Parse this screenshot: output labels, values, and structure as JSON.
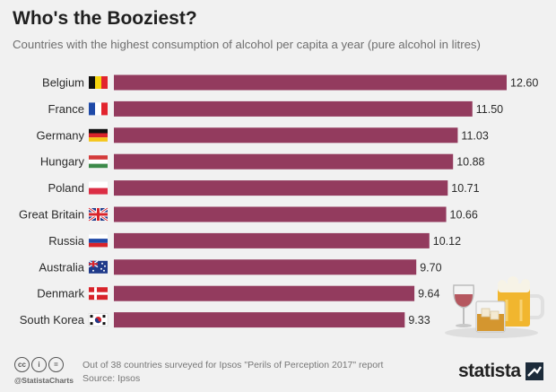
{
  "chart_data": {
    "type": "bar",
    "orientation": "horizontal",
    "title": "Who's the Booziest?",
    "subtitle": "Countries with the highest consumption of alcohol per capita a year (pure alcohol in litres)",
    "categories": [
      "Belgium",
      "France",
      "Germany",
      "Hungary",
      "Poland",
      "Great Britain",
      "Russia",
      "Australia",
      "Denmark",
      "South Korea"
    ],
    "values": [
      12.6,
      11.5,
      11.03,
      10.88,
      10.71,
      10.66,
      10.12,
      9.7,
      9.64,
      9.33
    ],
    "value_labels": [
      "12.60",
      "11.50",
      "11.03",
      "10.88",
      "10.71",
      "10.66",
      "10.12",
      "9.70",
      "9.64",
      "9.33"
    ],
    "bar_color": "#933b5e",
    "xlim": [
      0,
      12.6
    ],
    "grid": false,
    "legend": "none"
  },
  "footer": {
    "note": "Out of 38 countries surveyed for Ipsos \"Perils of Perception 2017\" report",
    "source": "Source: Ipsos",
    "handle": "@StatistaCharts",
    "brand": "statista"
  }
}
